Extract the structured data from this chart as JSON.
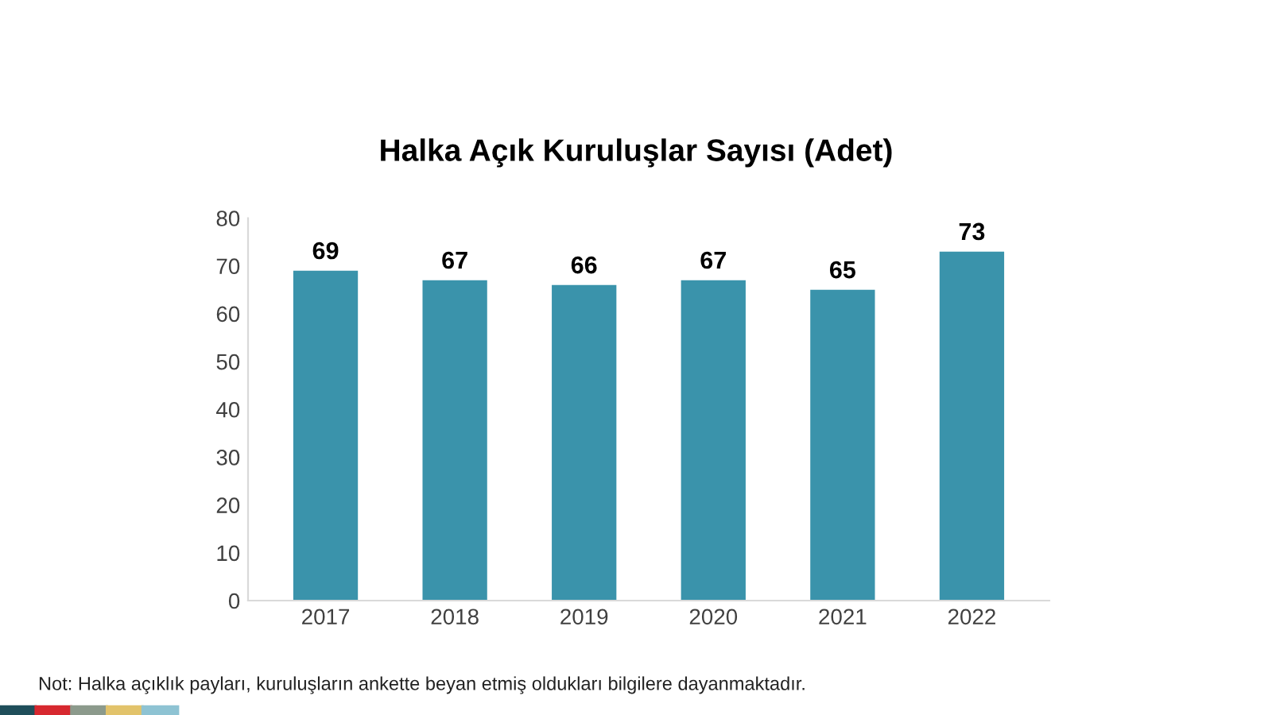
{
  "chart_data": {
    "type": "bar",
    "title": "Halka Açık Kuruluşlar Sayısı (Adet)",
    "categories": [
      "2017",
      "2018",
      "2019",
      "2020",
      "2021",
      "2022"
    ],
    "values": [
      69,
      67,
      66,
      67,
      65,
      73
    ],
    "color": "#3a93ab",
    "ylim": [
      0,
      80
    ],
    "yticks": [
      0,
      10,
      20,
      30,
      40,
      50,
      60,
      70,
      80
    ],
    "grid": false,
    "data_labels": true,
    "annotations": [
      "Not: Halka açıklık payları, kuruluşların ankette beyan etmiş oldukları bilgilere dayanmaktadır."
    ]
  }
}
